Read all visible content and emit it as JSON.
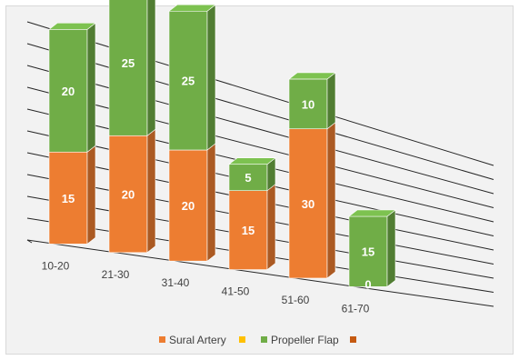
{
  "chart_data": {
    "type": "bar",
    "stacked": true,
    "view": "3d",
    "categories": [
      "10-20",
      "21-30",
      "31-40",
      "41-50",
      "51-60",
      "61-70"
    ],
    "series": [
      {
        "name": "Sural Artery",
        "color": "#ed7d31",
        "values": [
          15,
          20,
          20,
          15,
          30,
          0
        ]
      },
      {
        "name": "",
        "color": "#ffc000",
        "values": [
          0,
          0,
          0,
          0,
          0,
          0
        ]
      },
      {
        "name": "Propeller Flap",
        "color": "#70ad47",
        "values": [
          20,
          25,
          25,
          5,
          10,
          15
        ]
      },
      {
        "name": "",
        "color": "#c55a11",
        "values": [
          0,
          0,
          0,
          0,
          0,
          0
        ]
      }
    ],
    "data_labels": [
      [
        "15",
        "20",
        "20",
        "15",
        "30",
        "0"
      ],
      [
        "",
        "",
        "",
        "",
        "",
        ""
      ],
      [
        "20",
        "25",
        "25",
        "5",
        "10",
        "15"
      ],
      [
        "",
        "",
        "",
        "",
        "",
        ""
      ]
    ],
    "ylim": [
      0,
      50
    ],
    "grid": true,
    "legend_position": "bottom",
    "title": "",
    "xlabel": "",
    "ylabel": ""
  }
}
